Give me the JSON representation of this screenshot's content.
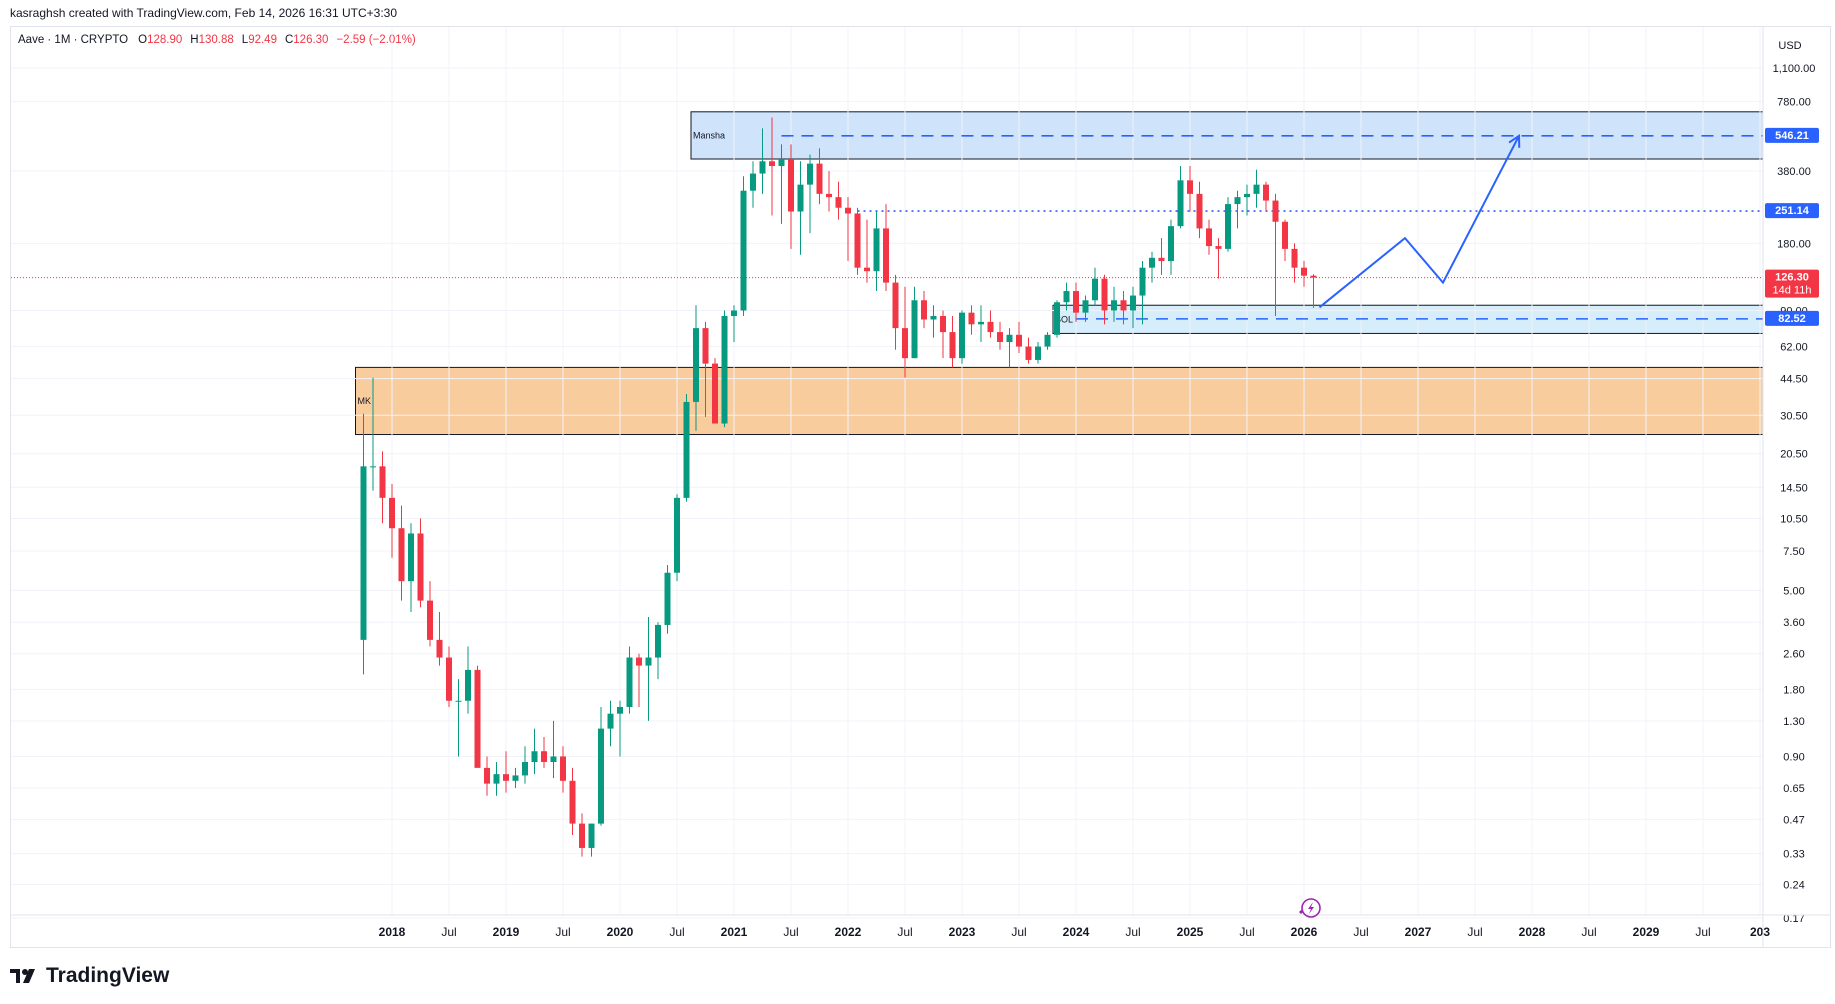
{
  "header": {
    "credit": "kasraghsh created with TradingView.com, Feb 14, 2026 16:31 UTC+3:30"
  },
  "legend": {
    "symbol": "Aave · 1M · CRYPTO",
    "o_label": "O",
    "o_value": "128.90",
    "h_label": "H",
    "h_value": "130.88",
    "l_label": "L",
    "l_value": "92.49",
    "c_label": "C",
    "c_value": "126.30",
    "change": "−2.59 (−2.01%)"
  },
  "brand": {
    "name": "TradingView"
  },
  "colors": {
    "up": "#089981",
    "down": "#f23645",
    "blue": "#2962ff",
    "zone_blue": "#cfe3fb",
    "zone_orange": "#f9cc9d",
    "zone_light": "#d6eefb"
  },
  "chart_data": {
    "type": "candlestick",
    "yscale": "log",
    "ylim": [
      0.15,
      1500
    ],
    "currency": "USD",
    "y_ticks": [
      "1,100.00",
      "780.00",
      "380.00",
      "180.00",
      "90.00",
      "62.00",
      "44.50",
      "30.50",
      "20.50",
      "14.50",
      "10.50",
      "7.50",
      "5.00",
      "3.60",
      "2.60",
      "1.80",
      "1.30",
      "0.90",
      "0.65",
      "0.47",
      "0.33",
      "0.24",
      "0.17"
    ],
    "x_ticks": [
      "2018",
      "Jul",
      "2019",
      "Jul",
      "2020",
      "Jul",
      "2021",
      "Jul",
      "2022",
      "Jul",
      "2023",
      "Jul",
      "2024",
      "Jul",
      "2025",
      "Jul",
      "2026",
      "Jul",
      "2027",
      "Jul",
      "2028",
      "Jul",
      "2029",
      "Jul",
      "203"
    ],
    "price_labels": [
      {
        "value": "546.21",
        "kind": "blue"
      },
      {
        "value": "251.14",
        "kind": "blue"
      },
      {
        "value": "126.30",
        "kind": "red",
        "sub": "14d 11h"
      },
      {
        "value": "82.52",
        "kind": "blue"
      }
    ],
    "zones": [
      {
        "label": "Mansha",
        "low": 430,
        "high": 700
      },
      {
        "label": "SOL",
        "low": 71,
        "high": 95
      },
      {
        "label": "MK",
        "low": 25,
        "high": 50
      }
    ],
    "levels": [
      {
        "value": 546.21,
        "style": "dashed"
      },
      {
        "value": 251.14,
        "style": "dotted"
      },
      {
        "value": 82.52,
        "style": "dashed"
      }
    ],
    "current_price": 126.3,
    "projection": [
      {
        "date": "2026-02",
        "value": 93
      },
      {
        "date": "2026-11",
        "value": 190
      },
      {
        "date": "2027-03",
        "value": 120
      },
      {
        "date": "2027-11",
        "value": 546.21
      }
    ],
    "candles": [
      {
        "date": "2017-10",
        "o": 3.0,
        "h": 31,
        "l": 2.1,
        "c": 18
      },
      {
        "date": "2017-11",
        "o": 18,
        "h": 45,
        "l": 14,
        "c": 18
      },
      {
        "date": "2017-12",
        "o": 18,
        "h": 21,
        "l": 10,
        "c": 13
      },
      {
        "date": "2018-01",
        "o": 13,
        "h": 15,
        "l": 7,
        "c": 9.5
      },
      {
        "date": "2018-02",
        "o": 9.5,
        "h": 12,
        "l": 4.5,
        "c": 5.5
      },
      {
        "date": "2018-03",
        "o": 5.5,
        "h": 10,
        "l": 4,
        "c": 9
      },
      {
        "date": "2018-04",
        "o": 9,
        "h": 10.5,
        "l": 4.2,
        "c": 4.5
      },
      {
        "date": "2018-05",
        "o": 4.5,
        "h": 5.5,
        "l": 2.8,
        "c": 3.0
      },
      {
        "date": "2018-06",
        "o": 3.0,
        "h": 4.0,
        "l": 2.3,
        "c": 2.5
      },
      {
        "date": "2018-07",
        "o": 2.5,
        "h": 2.8,
        "l": 1.5,
        "c": 1.6
      },
      {
        "date": "2018-08",
        "o": 1.6,
        "h": 2.0,
        "l": 0.9,
        "c": 1.6
      },
      {
        "date": "2018-09",
        "o": 1.6,
        "h": 2.8,
        "l": 1.4,
        "c": 2.2
      },
      {
        "date": "2018-10",
        "o": 2.2,
        "h": 2.3,
        "l": 1.2,
        "c": 0.8
      },
      {
        "date": "2018-11",
        "o": 0.8,
        "h": 0.9,
        "l": 0.6,
        "c": 0.68
      },
      {
        "date": "2018-12",
        "o": 0.68,
        "h": 0.85,
        "l": 0.6,
        "c": 0.75
      },
      {
        "date": "2019-01",
        "o": 0.75,
        "h": 0.95,
        "l": 0.62,
        "c": 0.7
      },
      {
        "date": "2019-02",
        "o": 0.7,
        "h": 0.8,
        "l": 0.65,
        "c": 0.74
      },
      {
        "date": "2019-03",
        "o": 0.74,
        "h": 1.0,
        "l": 0.68,
        "c": 0.85
      },
      {
        "date": "2019-04",
        "o": 0.85,
        "h": 1.2,
        "l": 0.75,
        "c": 0.95
      },
      {
        "date": "2019-05",
        "o": 0.95,
        "h": 1.1,
        "l": 0.8,
        "c": 0.85
      },
      {
        "date": "2019-06",
        "o": 0.85,
        "h": 1.3,
        "l": 0.72,
        "c": 0.9
      },
      {
        "date": "2019-07",
        "o": 0.9,
        "h": 1.0,
        "l": 0.62,
        "c": 0.7
      },
      {
        "date": "2019-08",
        "o": 0.7,
        "h": 0.8,
        "l": 0.4,
        "c": 0.45
      },
      {
        "date": "2019-09",
        "o": 0.45,
        "h": 0.5,
        "l": 0.32,
        "c": 0.35
      },
      {
        "date": "2019-10",
        "o": 0.35,
        "h": 0.45,
        "l": 0.32,
        "c": 0.45
      },
      {
        "date": "2019-11",
        "o": 0.45,
        "h": 1.5,
        "l": 0.44,
        "c": 1.2
      },
      {
        "date": "2019-12",
        "o": 1.2,
        "h": 1.6,
        "l": 1.0,
        "c": 1.4
      },
      {
        "date": "2020-01",
        "o": 1.4,
        "h": 1.6,
        "l": 0.9,
        "c": 1.5
      },
      {
        "date": "2020-02",
        "o": 1.5,
        "h": 2.8,
        "l": 1.4,
        "c": 2.5
      },
      {
        "date": "2020-03",
        "o": 2.5,
        "h": 2.6,
        "l": 1.5,
        "c": 2.3
      },
      {
        "date": "2020-04",
        "o": 2.3,
        "h": 3.8,
        "l": 1.3,
        "c": 2.5
      },
      {
        "date": "2020-05",
        "o": 2.5,
        "h": 3.6,
        "l": 2.0,
        "c": 3.5
      },
      {
        "date": "2020-06",
        "o": 3.5,
        "h": 6.5,
        "l": 3.2,
        "c": 6.0
      },
      {
        "date": "2020-07",
        "o": 6.0,
        "h": 13.5,
        "l": 5.5,
        "c": 13.0
      },
      {
        "date": "2020-08",
        "o": 13.0,
        "h": 38,
        "l": 12.5,
        "c": 35
      },
      {
        "date": "2020-09",
        "o": 35,
        "h": 95,
        "l": 26,
        "c": 75
      },
      {
        "date": "2020-10",
        "o": 75,
        "h": 80,
        "l": 30,
        "c": 52
      },
      {
        "date": "2020-11",
        "o": 52,
        "h": 55,
        "l": 28,
        "c": 28
      },
      {
        "date": "2020-12",
        "o": 28,
        "h": 90,
        "l": 27,
        "c": 85
      },
      {
        "date": "2021-01",
        "o": 85,
        "h": 95,
        "l": 65,
        "c": 90
      },
      {
        "date": "2021-02",
        "o": 90,
        "h": 360,
        "l": 85,
        "c": 310
      },
      {
        "date": "2021-03",
        "o": 310,
        "h": 420,
        "l": 260,
        "c": 370
      },
      {
        "date": "2021-04",
        "o": 370,
        "h": 590,
        "l": 300,
        "c": 420
      },
      {
        "date": "2021-05",
        "o": 420,
        "h": 660,
        "l": 240,
        "c": 400
      },
      {
        "date": "2021-06",
        "o": 400,
        "h": 500,
        "l": 220,
        "c": 430
      },
      {
        "date": "2021-07",
        "o": 430,
        "h": 500,
        "l": 170,
        "c": 250
      },
      {
        "date": "2021-08",
        "o": 250,
        "h": 420,
        "l": 160,
        "c": 330
      },
      {
        "date": "2021-09",
        "o": 330,
        "h": 450,
        "l": 200,
        "c": 410
      },
      {
        "date": "2021-10",
        "o": 410,
        "h": 480,
        "l": 270,
        "c": 300
      },
      {
        "date": "2021-11",
        "o": 300,
        "h": 380,
        "l": 250,
        "c": 290
      },
      {
        "date": "2021-12",
        "o": 290,
        "h": 340,
        "l": 230,
        "c": 260
      },
      {
        "date": "2022-01",
        "o": 260,
        "h": 290,
        "l": 150,
        "c": 245
      },
      {
        "date": "2022-02",
        "o": 245,
        "h": 260,
        "l": 130,
        "c": 140
      },
      {
        "date": "2022-03",
        "o": 140,
        "h": 230,
        "l": 120,
        "c": 135
      },
      {
        "date": "2022-04",
        "o": 135,
        "h": 250,
        "l": 110,
        "c": 210
      },
      {
        "date": "2022-05",
        "o": 210,
        "h": 270,
        "l": 110,
        "c": 120
      },
      {
        "date": "2022-06",
        "o": 120,
        "h": 130,
        "l": 60,
        "c": 75
      },
      {
        "date": "2022-07",
        "o": 75,
        "h": 115,
        "l": 45,
        "c": 55
      },
      {
        "date": "2022-08",
        "o": 55,
        "h": 115,
        "l": 55,
        "c": 100
      },
      {
        "date": "2022-09",
        "o": 100,
        "h": 110,
        "l": 75,
        "c": 82
      },
      {
        "date": "2022-10",
        "o": 82,
        "h": 95,
        "l": 68,
        "c": 85
      },
      {
        "date": "2022-11",
        "o": 85,
        "h": 90,
        "l": 55,
        "c": 72
      },
      {
        "date": "2022-12",
        "o": 72,
        "h": 85,
        "l": 50,
        "c": 55
      },
      {
        "date": "2023-01",
        "o": 55,
        "h": 90,
        "l": 52,
        "c": 88
      },
      {
        "date": "2023-02",
        "o": 88,
        "h": 95,
        "l": 70,
        "c": 78
      },
      {
        "date": "2023-03",
        "o": 78,
        "h": 95,
        "l": 65,
        "c": 80
      },
      {
        "date": "2023-04",
        "o": 80,
        "h": 90,
        "l": 68,
        "c": 72
      },
      {
        "date": "2023-05",
        "o": 72,
        "h": 80,
        "l": 60,
        "c": 65
      },
      {
        "date": "2023-06",
        "o": 65,
        "h": 75,
        "l": 50,
        "c": 70
      },
      {
        "date": "2023-07",
        "o": 70,
        "h": 80,
        "l": 58,
        "c": 62
      },
      {
        "date": "2023-08",
        "o": 62,
        "h": 68,
        "l": 52,
        "c": 54
      },
      {
        "date": "2023-09",
        "o": 54,
        "h": 65,
        "l": 52,
        "c": 62
      },
      {
        "date": "2023-10",
        "o": 62,
        "h": 72,
        "l": 60,
        "c": 70
      },
      {
        "date": "2023-11",
        "o": 70,
        "h": 100,
        "l": 68,
        "c": 98
      },
      {
        "date": "2023-12",
        "o": 98,
        "h": 120,
        "l": 90,
        "c": 110
      },
      {
        "date": "2024-01",
        "o": 110,
        "h": 120,
        "l": 80,
        "c": 88
      },
      {
        "date": "2024-02",
        "o": 88,
        "h": 105,
        "l": 80,
        "c": 100
      },
      {
        "date": "2024-03",
        "o": 100,
        "h": 140,
        "l": 95,
        "c": 125
      },
      {
        "date": "2024-04",
        "o": 125,
        "h": 130,
        "l": 78,
        "c": 90
      },
      {
        "date": "2024-05",
        "o": 90,
        "h": 115,
        "l": 80,
        "c": 100
      },
      {
        "date": "2024-06",
        "o": 100,
        "h": 110,
        "l": 78,
        "c": 90
      },
      {
        "date": "2024-07",
        "o": 90,
        "h": 115,
        "l": 75,
        "c": 105
      },
      {
        "date": "2024-08",
        "o": 105,
        "h": 150,
        "l": 78,
        "c": 140
      },
      {
        "date": "2024-09",
        "o": 140,
        "h": 165,
        "l": 120,
        "c": 155
      },
      {
        "date": "2024-10",
        "o": 155,
        "h": 190,
        "l": 130,
        "c": 150
      },
      {
        "date": "2024-11",
        "o": 150,
        "h": 230,
        "l": 130,
        "c": 215
      },
      {
        "date": "2024-12",
        "o": 215,
        "h": 400,
        "l": 210,
        "c": 345
      },
      {
        "date": "2025-01",
        "o": 345,
        "h": 400,
        "l": 250,
        "c": 300
      },
      {
        "date": "2025-02",
        "o": 300,
        "h": 340,
        "l": 190,
        "c": 210
      },
      {
        "date": "2025-03",
        "o": 210,
        "h": 230,
        "l": 160,
        "c": 175
      },
      {
        "date": "2025-04",
        "o": 175,
        "h": 190,
        "l": 125,
        "c": 170
      },
      {
        "date": "2025-05",
        "o": 170,
        "h": 290,
        "l": 165,
        "c": 270
      },
      {
        "date": "2025-06",
        "o": 270,
        "h": 310,
        "l": 210,
        "c": 290
      },
      {
        "date": "2025-07",
        "o": 290,
        "h": 330,
        "l": 240,
        "c": 300
      },
      {
        "date": "2025-08",
        "o": 300,
        "h": 385,
        "l": 260,
        "c": 330
      },
      {
        "date": "2025-09",
        "o": 330,
        "h": 340,
        "l": 250,
        "c": 280
      },
      {
        "date": "2025-10",
        "o": 280,
        "h": 300,
        "l": 85,
        "c": 225
      },
      {
        "date": "2025-11",
        "o": 225,
        "h": 230,
        "l": 150,
        "c": 170
      },
      {
        "date": "2025-12",
        "o": 170,
        "h": 180,
        "l": 120,
        "c": 140
      },
      {
        "date": "2026-01",
        "o": 140,
        "h": 150,
        "l": 115,
        "c": 128.9
      },
      {
        "date": "2026-02",
        "o": 128.9,
        "h": 130.88,
        "l": 92.49,
        "c": 126.3
      }
    ]
  }
}
